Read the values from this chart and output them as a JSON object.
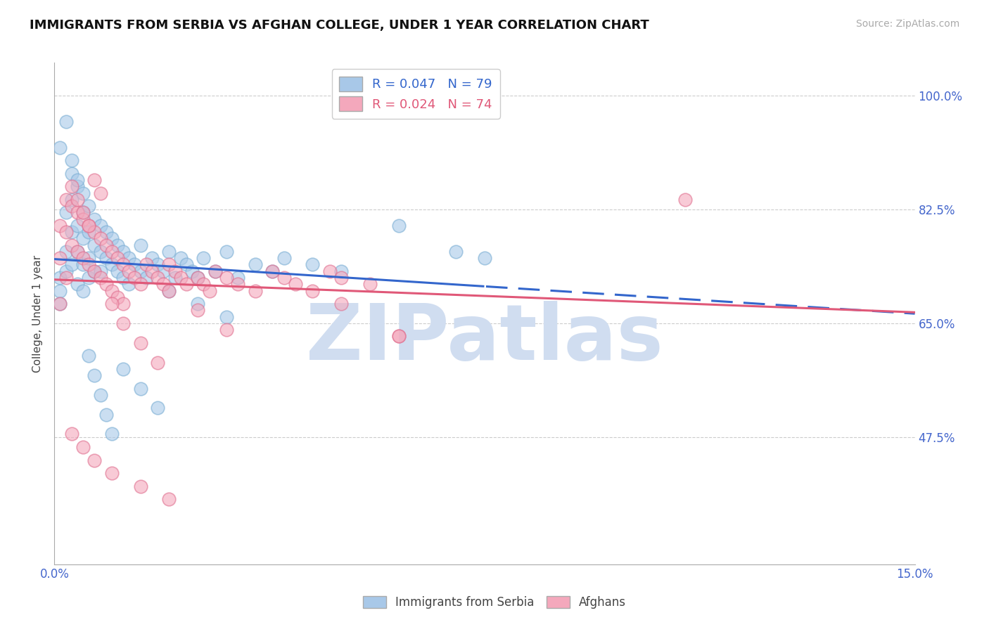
{
  "title": "IMMIGRANTS FROM SERBIA VS AFGHAN COLLEGE, UNDER 1 YEAR CORRELATION CHART",
  "source": "Source: ZipAtlas.com",
  "ylabel": "College, Under 1 year",
  "xlim": [
    0.0,
    0.15
  ],
  "ylim": [
    0.28,
    1.05
  ],
  "yticks": [
    0.475,
    0.65,
    0.825,
    1.0
  ],
  "ytick_labels": [
    "47.5%",
    "65.0%",
    "82.5%",
    "100.0%"
  ],
  "series1_name": "Immigrants from Serbia",
  "series1_color": "#a8c8e8",
  "series1_edge_color": "#7aaed4",
  "series1_R": 0.047,
  "series1_N": 79,
  "series1_line_color": "#3366cc",
  "series2_name": "Afghans",
  "series2_color": "#f4a8bc",
  "series2_edge_color": "#e07090",
  "series2_R": 0.024,
  "series2_N": 74,
  "series2_line_color": "#e05878",
  "title_fontsize": 13,
  "axis_label_color": "#4466cc",
  "grid_color": "#cccccc",
  "watermark": "ZIPatlas",
  "watermark_color": "#d0ddf0",
  "background_color": "#ffffff",
  "serbia_x": [
    0.001,
    0.001,
    0.001,
    0.002,
    0.002,
    0.002,
    0.003,
    0.003,
    0.003,
    0.003,
    0.004,
    0.004,
    0.004,
    0.004,
    0.005,
    0.005,
    0.005,
    0.005,
    0.006,
    0.006,
    0.006,
    0.006,
    0.007,
    0.007,
    0.007,
    0.008,
    0.008,
    0.008,
    0.009,
    0.009,
    0.01,
    0.01,
    0.011,
    0.011,
    0.012,
    0.012,
    0.013,
    0.013,
    0.014,
    0.015,
    0.015,
    0.016,
    0.017,
    0.018,
    0.019,
    0.02,
    0.021,
    0.022,
    0.023,
    0.024,
    0.025,
    0.026,
    0.028,
    0.03,
    0.032,
    0.035,
    0.038,
    0.04,
    0.045,
    0.05,
    0.001,
    0.002,
    0.003,
    0.004,
    0.005,
    0.006,
    0.007,
    0.008,
    0.009,
    0.01,
    0.012,
    0.015,
    0.018,
    0.02,
    0.025,
    0.03,
    0.06,
    0.07,
    0.075
  ],
  "serbia_y": [
    0.72,
    0.7,
    0.68,
    0.82,
    0.76,
    0.73,
    0.88,
    0.84,
    0.79,
    0.74,
    0.86,
    0.8,
    0.76,
    0.71,
    0.82,
    0.78,
    0.74,
    0.7,
    0.83,
    0.79,
    0.75,
    0.72,
    0.81,
    0.77,
    0.73,
    0.8,
    0.76,
    0.73,
    0.79,
    0.75,
    0.78,
    0.74,
    0.77,
    0.73,
    0.76,
    0.72,
    0.75,
    0.71,
    0.74,
    0.77,
    0.73,
    0.72,
    0.75,
    0.74,
    0.73,
    0.76,
    0.72,
    0.75,
    0.74,
    0.73,
    0.72,
    0.75,
    0.73,
    0.76,
    0.72,
    0.74,
    0.73,
    0.75,
    0.74,
    0.73,
    0.92,
    0.96,
    0.9,
    0.87,
    0.85,
    0.6,
    0.57,
    0.54,
    0.51,
    0.48,
    0.58,
    0.55,
    0.52,
    0.7,
    0.68,
    0.66,
    0.8,
    0.76,
    0.75
  ],
  "afghan_x": [
    0.001,
    0.001,
    0.002,
    0.002,
    0.003,
    0.003,
    0.004,
    0.004,
    0.005,
    0.005,
    0.006,
    0.006,
    0.007,
    0.007,
    0.008,
    0.008,
    0.009,
    0.009,
    0.01,
    0.01,
    0.011,
    0.011,
    0.012,
    0.012,
    0.013,
    0.014,
    0.015,
    0.016,
    0.017,
    0.018,
    0.019,
    0.02,
    0.021,
    0.022,
    0.023,
    0.025,
    0.026,
    0.027,
    0.028,
    0.03,
    0.032,
    0.035,
    0.038,
    0.04,
    0.042,
    0.045,
    0.048,
    0.05,
    0.055,
    0.06,
    0.001,
    0.002,
    0.003,
    0.004,
    0.005,
    0.006,
    0.007,
    0.008,
    0.01,
    0.012,
    0.015,
    0.018,
    0.02,
    0.025,
    0.03,
    0.05,
    0.06,
    0.11,
    0.003,
    0.005,
    0.007,
    0.01,
    0.015,
    0.02
  ],
  "afghan_y": [
    0.8,
    0.75,
    0.84,
    0.79,
    0.83,
    0.77,
    0.82,
    0.76,
    0.81,
    0.75,
    0.8,
    0.74,
    0.79,
    0.73,
    0.78,
    0.72,
    0.77,
    0.71,
    0.76,
    0.7,
    0.75,
    0.69,
    0.74,
    0.68,
    0.73,
    0.72,
    0.71,
    0.74,
    0.73,
    0.72,
    0.71,
    0.74,
    0.73,
    0.72,
    0.71,
    0.72,
    0.71,
    0.7,
    0.73,
    0.72,
    0.71,
    0.7,
    0.73,
    0.72,
    0.71,
    0.7,
    0.73,
    0.72,
    0.71,
    0.63,
    0.68,
    0.72,
    0.86,
    0.84,
    0.82,
    0.8,
    0.87,
    0.85,
    0.68,
    0.65,
    0.62,
    0.59,
    0.7,
    0.67,
    0.64,
    0.68,
    0.63,
    0.84,
    0.48,
    0.46,
    0.44,
    0.42,
    0.4,
    0.38
  ]
}
